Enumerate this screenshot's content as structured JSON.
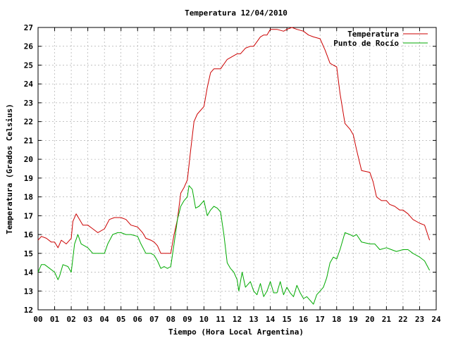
{
  "chart_data": {
    "type": "line",
    "title": "Temperatura 12/04/2010",
    "xlabel": "Tiempo (Hora Local Argentina)",
    "ylabel": "Temperatura (Grados Celsius)",
    "xlim": [
      0,
      24
    ],
    "ylim": [
      12,
      27
    ],
    "grid": true,
    "legend_position": "top-right",
    "x_ticks": [
      "00",
      "01",
      "02",
      "03",
      "04",
      "05",
      "06",
      "07",
      "08",
      "09",
      "10",
      "11",
      "12",
      "13",
      "14",
      "15",
      "16",
      "17",
      "18",
      "19",
      "20",
      "21",
      "22",
      "23",
      "24"
    ],
    "y_ticks": [
      "12",
      "13",
      "14",
      "15",
      "16",
      "17",
      "18",
      "19",
      "20",
      "21",
      "22",
      "23",
      "24",
      "25",
      "26",
      "27"
    ],
    "series": [
      {
        "name": "Temperatura",
        "color": "#cc0000",
        "x": [
          0.0,
          0.2,
          0.5,
          0.8,
          1.0,
          1.2,
          1.4,
          1.7,
          2.0,
          2.1,
          2.3,
          2.5,
          2.7,
          3.0,
          3.3,
          3.6,
          4.0,
          4.3,
          4.6,
          5.0,
          5.3,
          5.6,
          6.0,
          6.3,
          6.5,
          6.8,
          7.0,
          7.2,
          7.4,
          7.7,
          8.0,
          8.2,
          8.4,
          8.6,
          8.8,
          9.0,
          9.2,
          9.4,
          9.6,
          10.0,
          10.2,
          10.4,
          10.6,
          11.0,
          11.4,
          11.8,
          12.0,
          12.2,
          12.5,
          12.8,
          13.0,
          13.4,
          13.6,
          13.8,
          14.0,
          14.4,
          14.8,
          15.0,
          15.3,
          15.6,
          16.0,
          16.3,
          16.6,
          17.0,
          17.3,
          17.6,
          17.8,
          18.0,
          18.2,
          18.5,
          18.8,
          19.0,
          19.2,
          19.5,
          20.0,
          20.2,
          20.4,
          20.7,
          21.0,
          21.2,
          21.5,
          21.8,
          22.0,
          22.3,
          22.6,
          23.0,
          23.3,
          23.6
        ],
        "values": [
          15.7,
          15.9,
          15.8,
          15.6,
          15.6,
          15.3,
          15.7,
          15.5,
          15.8,
          16.7,
          17.1,
          16.8,
          16.5,
          16.5,
          16.3,
          16.1,
          16.3,
          16.8,
          16.9,
          16.9,
          16.8,
          16.5,
          16.4,
          16.1,
          15.8,
          15.7,
          15.6,
          15.4,
          15.0,
          15.0,
          15.0,
          16.0,
          16.8,
          18.2,
          18.5,
          18.9,
          20.5,
          22.0,
          22.4,
          22.8,
          23.8,
          24.6,
          24.8,
          24.8,
          25.3,
          25.5,
          25.6,
          25.6,
          25.9,
          26.0,
          26.0,
          26.5,
          26.6,
          26.6,
          26.9,
          26.9,
          26.8,
          26.9,
          27.0,
          26.9,
          26.8,
          26.6,
          26.5,
          26.4,
          25.8,
          25.1,
          25.0,
          24.9,
          23.5,
          21.9,
          21.6,
          21.3,
          20.5,
          19.4,
          19.3,
          18.8,
          18.0,
          17.8,
          17.8,
          17.6,
          17.5,
          17.3,
          17.3,
          17.1,
          16.8,
          16.6,
          16.5,
          15.7
        ]
      },
      {
        "name": "Punto de Rocío",
        "color": "#00aa00",
        "x": [
          0.0,
          0.2,
          0.4,
          0.7,
          1.0,
          1.2,
          1.3,
          1.5,
          1.8,
          2.0,
          2.2,
          2.4,
          2.6,
          2.8,
          3.0,
          3.3,
          3.6,
          4.0,
          4.2,
          4.5,
          4.8,
          5.0,
          5.3,
          5.6,
          6.0,
          6.2,
          6.5,
          6.8,
          7.0,
          7.2,
          7.4,
          7.6,
          7.8,
          8.0,
          8.2,
          8.4,
          8.6,
          8.8,
          9.0,
          9.1,
          9.3,
          9.5,
          9.7,
          10.0,
          10.2,
          10.4,
          10.6,
          10.8,
          11.0,
          11.2,
          11.4,
          11.6,
          11.8,
          12.0,
          12.1,
          12.3,
          12.5,
          12.8,
          13.0,
          13.2,
          13.4,
          13.6,
          13.8,
          14.0,
          14.2,
          14.4,
          14.6,
          14.8,
          15.0,
          15.2,
          15.4,
          15.6,
          15.8,
          16.0,
          16.2,
          16.4,
          16.6,
          16.8,
          17.0,
          17.2,
          17.4,
          17.6,
          17.8,
          18.0,
          18.2,
          18.5,
          18.8,
          19.0,
          19.2,
          19.5,
          20.0,
          20.3,
          20.6,
          21.0,
          21.3,
          21.6,
          22.0,
          22.3,
          22.6,
          23.0,
          23.3,
          23.6
        ],
        "values": [
          14.0,
          14.4,
          14.4,
          14.2,
          14.0,
          13.6,
          13.8,
          14.4,
          14.3,
          14.0,
          15.5,
          16.0,
          15.5,
          15.4,
          15.3,
          15.0,
          15.0,
          15.0,
          15.5,
          16.0,
          16.1,
          16.1,
          16.0,
          16.0,
          15.9,
          15.5,
          15.0,
          15.0,
          14.9,
          14.6,
          14.2,
          14.3,
          14.2,
          14.3,
          15.5,
          16.8,
          17.5,
          17.8,
          18.0,
          18.6,
          18.4,
          17.4,
          17.5,
          17.8,
          17.0,
          17.3,
          17.5,
          17.4,
          17.2,
          16.0,
          14.5,
          14.2,
          14.0,
          13.6,
          13.0,
          14.0,
          13.2,
          13.5,
          13.0,
          12.8,
          13.4,
          12.7,
          13.0,
          13.5,
          12.9,
          12.9,
          13.5,
          12.8,
          13.2,
          12.9,
          12.7,
          13.3,
          12.9,
          12.6,
          12.7,
          12.5,
          12.3,
          12.8,
          13.0,
          13.2,
          13.7,
          14.5,
          14.8,
          14.7,
          15.2,
          16.1,
          16.0,
          15.9,
          16.0,
          15.6,
          15.5,
          15.5,
          15.2,
          15.3,
          15.2,
          15.1,
          15.2,
          15.2,
          15.0,
          14.8,
          14.6,
          14.1
        ]
      }
    ]
  }
}
